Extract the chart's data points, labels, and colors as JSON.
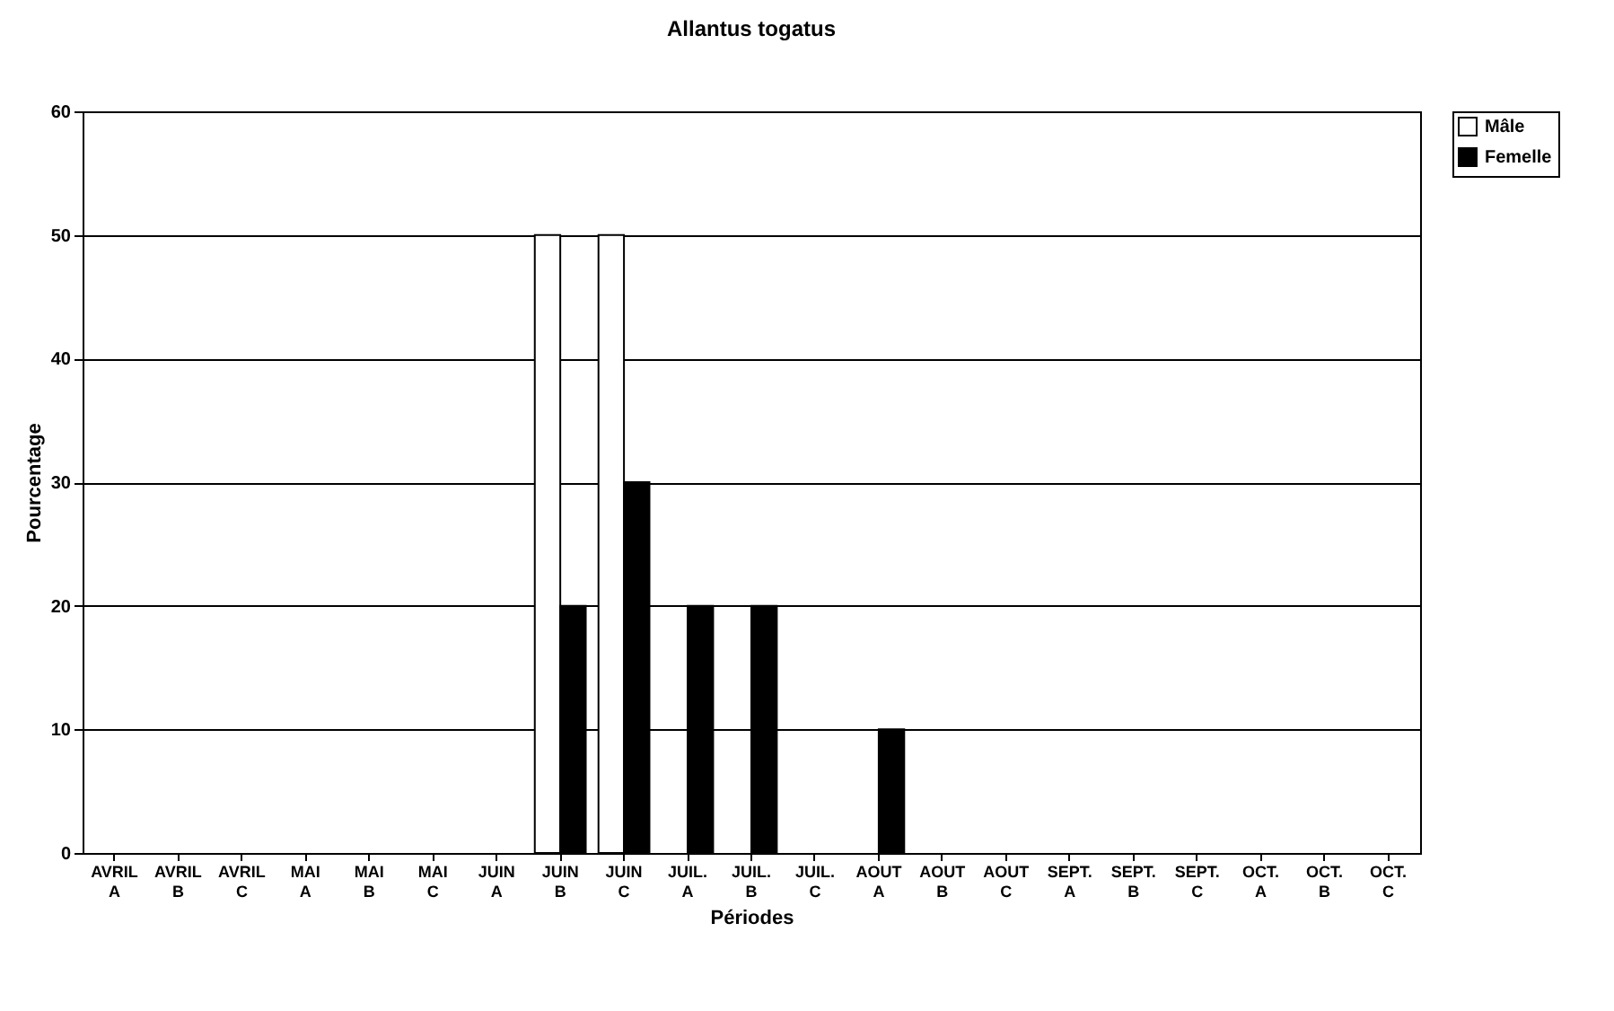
{
  "chart_data": {
    "type": "bar",
    "title": "Allantus togatus",
    "xlabel": "Périodes",
    "ylabel": "Pourcentage",
    "categories": [
      "AVRIL A",
      "AVRIL B",
      "AVRIL C",
      "MAI A",
      "MAI B",
      "MAI C",
      "JUIN A",
      "JUIN B",
      "JUIN C",
      "JUIL. A",
      "JUIL. B",
      "JUIL. C",
      "AOUT A",
      "AOUT B",
      "AOUT C",
      "SEPT. A",
      "SEPT. B",
      "SEPT. C",
      "OCT. A",
      "OCT. B",
      "OCT. C"
    ],
    "series": [
      {
        "name": "Mâle",
        "color": "#ffffff",
        "values": [
          0,
          0,
          0,
          0,
          0,
          0,
          0,
          50,
          50,
          0,
          0,
          0,
          0,
          0,
          0,
          0,
          0,
          0,
          0,
          0,
          0
        ]
      },
      {
        "name": "Femelle",
        "color": "#000000",
        "values": [
          0,
          0,
          0,
          0,
          0,
          0,
          0,
          20,
          30,
          20,
          20,
          0,
          10,
          0,
          0,
          0,
          0,
          0,
          0,
          0,
          0
        ]
      }
    ],
    "ylim": [
      0,
      60
    ],
    "yticks": [
      0,
      10,
      20,
      30,
      40,
      50,
      60
    ],
    "grid": "y",
    "legend": "right"
  }
}
